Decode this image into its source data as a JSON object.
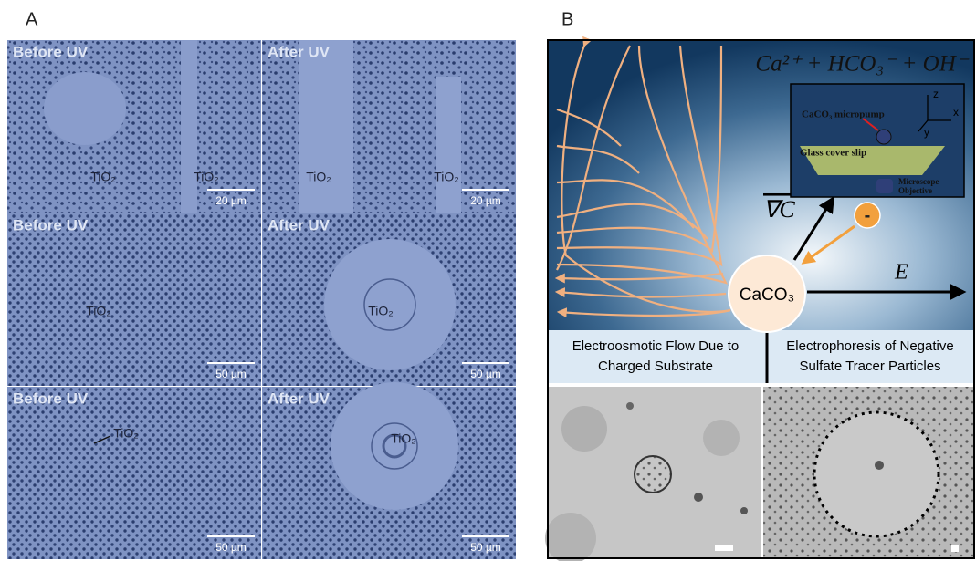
{
  "panel_a": {
    "label": "A",
    "cells": [
      {
        "title": "Before UV",
        "labels": [
          "TiO₂",
          "TiO₂"
        ],
        "scale_bar": "20 µm"
      },
      {
        "title": "After UV",
        "labels": [
          "TiO₂",
          "TiO₂"
        ],
        "scale_bar": "20 µm"
      },
      {
        "title": "Before UV",
        "labels": [
          "TiO₂"
        ],
        "scale_bar": "50 µm"
      },
      {
        "title": "After UV",
        "labels": [
          "TiO₂"
        ],
        "scale_bar": "50 µm"
      },
      {
        "title": "Before UV",
        "labels": [
          "TiO₂"
        ],
        "scale_bar": "50 µm"
      },
      {
        "title": "After UV",
        "labels": [
          "TiO₂"
        ],
        "scale_bar": "50 µm"
      }
    ]
  },
  "panel_b": {
    "label": "B",
    "equation": "Ca²⁺ + HCO₃⁻ + OH⁻",
    "particle": "CaCO₃",
    "field": "E",
    "gradient": "∇C",
    "tracer_sign": "-",
    "inset": {
      "pump": "CaCO₃ micropump",
      "slip": "Glass cover slip",
      "objective_1": "Microscope",
      "objective_2": "Objective",
      "z": "z",
      "x": "x",
      "y": "y"
    },
    "captions": [
      {
        "line1": "Electroosmotic Flow Due to",
        "line2": "Charged Substrate"
      },
      {
        "line1": "Electrophoresis of  Negative",
        "line2": "Sulfate Tracer Particles"
      }
    ]
  }
}
